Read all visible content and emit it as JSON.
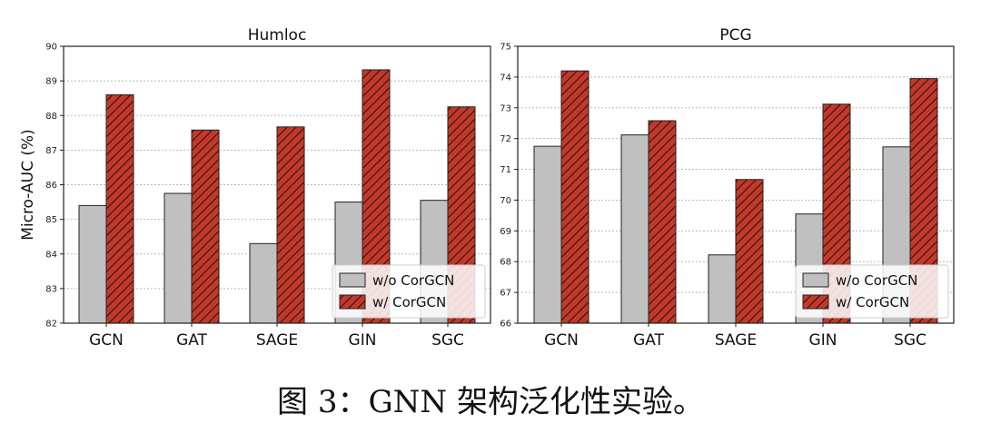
{
  "caption": "图 3：GNN 架构泛化性实验。",
  "colors": {
    "without": "#c0c0c0",
    "with": "#c0392b",
    "hatch": "#2a0d0a",
    "grid": "#b8b8b8"
  },
  "chart_data": [
    {
      "type": "bar",
      "title": "Humloc",
      "ylabel": "Micro-AUC (%)",
      "xlabel": "",
      "ylim": [
        82,
        90
      ],
      "yticks": [
        "82",
        "83",
        "84",
        "85",
        "86",
        "87",
        "88",
        "89",
        "90"
      ],
      "grid": true,
      "legend_position": "lower-right",
      "categories": [
        "GCN",
        "GAT",
        "SAGE",
        "GIN",
        "SGC"
      ],
      "series": [
        {
          "name": "w/o CorGCN",
          "values": [
            85.4,
            85.75,
            84.3,
            85.5,
            85.55
          ]
        },
        {
          "name": "w/ CorGCN",
          "values": [
            88.6,
            87.58,
            87.67,
            89.32,
            88.25
          ]
        }
      ]
    },
    {
      "type": "bar",
      "title": "PCG",
      "ylabel": "",
      "xlabel": "",
      "ylim": [
        66,
        75
      ],
      "yticks": [
        "66",
        "67",
        "68",
        "69",
        "70",
        "71",
        "72",
        "73",
        "74",
        "75"
      ],
      "grid": true,
      "legend_position": "lower-right",
      "categories": [
        "GCN",
        "GAT",
        "SAGE",
        "GIN",
        "SGC"
      ],
      "series": [
        {
          "name": "w/o CorGCN",
          "values": [
            71.75,
            72.12,
            68.22,
            69.55,
            71.73
          ]
        },
        {
          "name": "w/ CorGCN",
          "values": [
            74.2,
            72.58,
            70.67,
            73.12,
            73.95
          ]
        }
      ]
    }
  ]
}
